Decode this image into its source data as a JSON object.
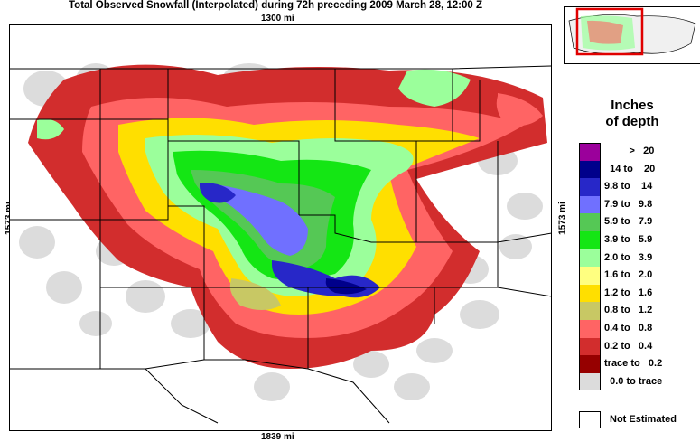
{
  "title": "Total Observed Snowfall (Interpolated) during 72h preceding 2009 March 28, 12:00 Z",
  "distances": {
    "top": "1300 mi",
    "bottom": "1839 mi",
    "left": "1573 mi",
    "right": "1573 mi"
  },
  "legend": {
    "title_line1": "Inches",
    "title_line2": "of depth",
    "items": [
      {
        "label": "         >   20",
        "color": "#9b009b"
      },
      {
        "label": "  14 to    20",
        "color": "#00008b"
      },
      {
        "label": "9.8 to    14",
        "color": "#2727c8"
      },
      {
        "label": "7.9 to   9.8",
        "color": "#7070ff"
      },
      {
        "label": "5.9 to   7.9",
        "color": "#55c855"
      },
      {
        "label": "3.9 to   5.9",
        "color": "#14e614"
      },
      {
        "label": "2.0 to   3.9",
        "color": "#9bff9b"
      },
      {
        "label": "1.6 to   2.0",
        "color": "#ffff80"
      },
      {
        "label": "1.2 to   1.6",
        "color": "#ffdf00"
      },
      {
        "label": "0.8 to   1.2",
        "color": "#c8c864"
      },
      {
        "label": "0.4 to   0.8",
        "color": "#ff6464"
      },
      {
        "label": "0.2 to   0.4",
        "color": "#d22d2d"
      },
      {
        "label": "trace to   0.2",
        "color": "#960000"
      },
      {
        "label": "  0.0 to trace",
        "color": "#dcdcdc"
      }
    ],
    "not_estimated": "Not Estimated"
  }
}
